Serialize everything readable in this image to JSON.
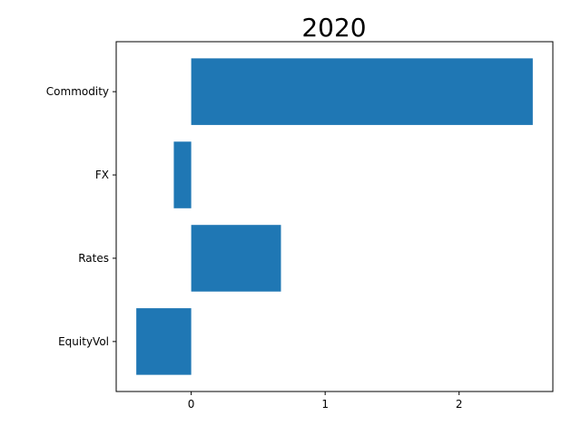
{
  "chart_data": {
    "type": "bar",
    "orientation": "horizontal",
    "title": "2020",
    "xlabel": "",
    "ylabel": "",
    "categories": [
      "EquityVol",
      "Rates",
      "FX",
      "Commodity"
    ],
    "values": [
      -0.41,
      0.67,
      -0.13,
      2.55
    ],
    "xlim": [
      -0.56,
      2.7
    ],
    "xticks": [
      0,
      1,
      2
    ],
    "xtick_labels": [
      "0",
      "1",
      "2"
    ],
    "grid": false,
    "legend": "none",
    "bar_color": "#1f77b4"
  }
}
